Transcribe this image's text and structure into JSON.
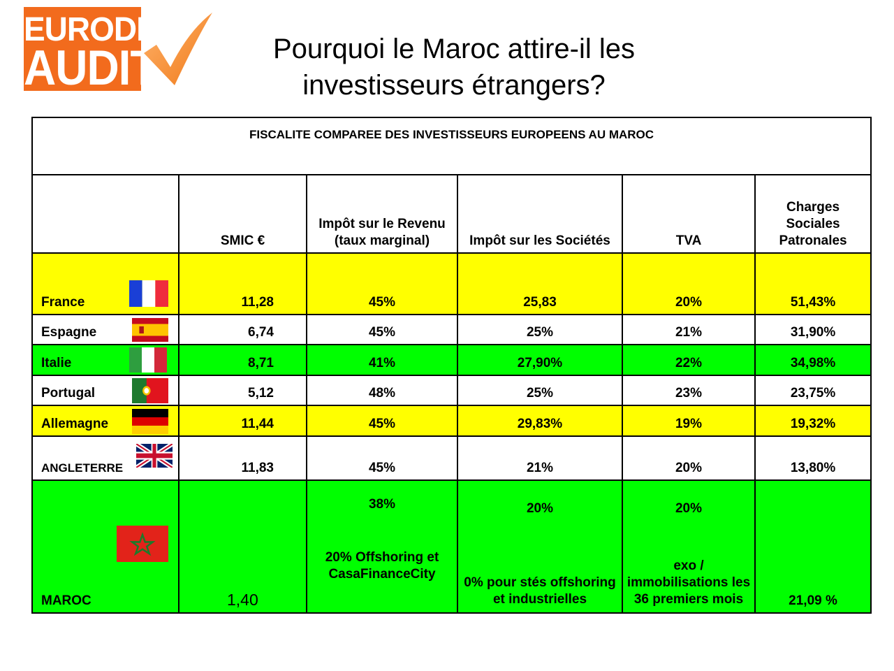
{
  "logo": {
    "line1": "EURODEFI",
    "line2": "AUDIT"
  },
  "title": {
    "line1": "Pourquoi le Maroc attire-il les",
    "line2": "investisseurs étrangers?"
  },
  "table": {
    "caption": "FISCALITE COMPAREE DES INVESTISSEURS EUROPEENS AU MAROC",
    "headers": [
      "",
      "SMIC €",
      "Impôt sur le Revenu (taux marginal)",
      "Impôt sur les Sociétés",
      "TVA",
      "Charges Sociales Patronales"
    ],
    "rows": [
      {
        "country": "France",
        "flag": "france-flag-icon",
        "smic": "11,28",
        "ir": "45%",
        "is": "25,83",
        "tva": "20%",
        "charges": "51,43%"
      },
      {
        "country": "Espagne",
        "flag": "spain-flag-icon",
        "smic": "6,74",
        "ir": "45%",
        "is": "25%",
        "tva": "21%",
        "charges": "31,90%"
      },
      {
        "country": "Italie",
        "flag": "italy-flag-icon",
        "smic": "8,71",
        "ir": "41%",
        "is": "27,90%",
        "tva": "22%",
        "charges": "34,98%"
      },
      {
        "country": "Portugal",
        "flag": "portugal-flag-icon",
        "smic": "5,12",
        "ir": "48%",
        "is": "25%",
        "tva": "23%",
        "charges": "23,75%"
      },
      {
        "country": "Allemagne",
        "flag": "germany-flag-icon",
        "smic": "11,44",
        "ir": "45%",
        "is": "29,83%",
        "tva": "19%",
        "charges": "19,32%"
      },
      {
        "country": "ANGLETERRE",
        "flag": "uk-flag-icon",
        "smic": "11,83",
        "ir": "45%",
        "is": "21%",
        "tva": "20%",
        "charges": "13,80%"
      }
    ],
    "maroc": {
      "country": "MAROC",
      "flag": "morocco-flag-icon",
      "smic": "1,40",
      "ir_top": "38%",
      "ir_bottom": "20% Offshoring et CasaFinanceCity",
      "is_top": "20%",
      "is_bottom": "0% pour stés offshoring et industrielles",
      "tva_top": "20%",
      "tva_bottom": "exo / immobilisations les 36 premiers mois",
      "charges": "21,09 %"
    }
  },
  "colors": {
    "yellow": "#ffff00",
    "green": "#00ff00",
    "logo_orange": "#f26b1d"
  }
}
